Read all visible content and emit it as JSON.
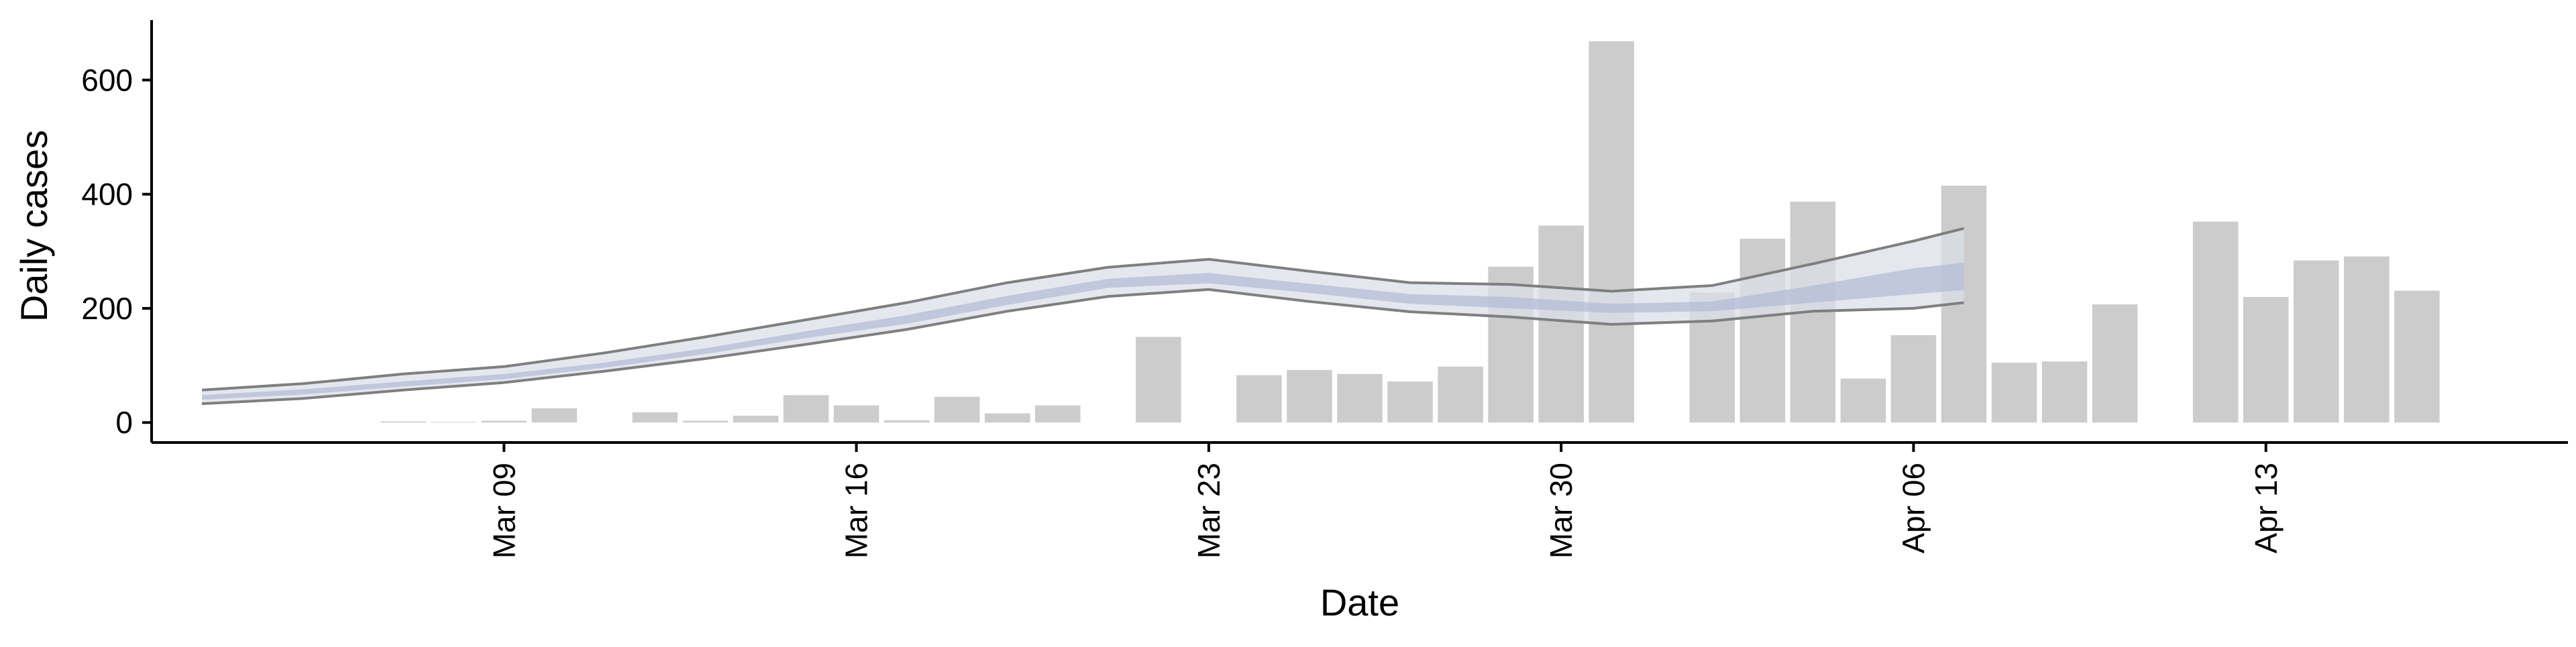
{
  "chart_data": {
    "type": "bar",
    "xlabel": "Date",
    "ylabel": "Daily cases",
    "ylim": [
      -35,
      705
    ],
    "y_ticks": [
      0,
      200,
      400,
      600
    ],
    "x_ticks": [
      {
        "date": "2020-03-09",
        "label": "Mar 09"
      },
      {
        "date": "2020-03-16",
        "label": "Mar 16"
      },
      {
        "date": "2020-03-23",
        "label": "Mar 23"
      },
      {
        "date": "2020-03-30",
        "label": "Mar 30"
      },
      {
        "date": "2020-04-06",
        "label": "Apr 06"
      },
      {
        "date": "2020-04-13",
        "label": "Apr 13"
      }
    ],
    "xlim": [
      "2020-03-02",
      "2020-04-19"
    ],
    "bar_color": "#cccccc",
    "bars": [
      {
        "date": "2020-03-07",
        "value": 2
      },
      {
        "date": "2020-03-08",
        "value": 1
      },
      {
        "date": "2020-03-09",
        "value": 3
      },
      {
        "date": "2020-03-10",
        "value": 25
      },
      {
        "date": "2020-03-12",
        "value": 18
      },
      {
        "date": "2020-03-13",
        "value": 3
      },
      {
        "date": "2020-03-14",
        "value": 12
      },
      {
        "date": "2020-03-15",
        "value": 48
      },
      {
        "date": "2020-03-16",
        "value": 30
      },
      {
        "date": "2020-03-17",
        "value": 4
      },
      {
        "date": "2020-03-18",
        "value": 45
      },
      {
        "date": "2020-03-19",
        "value": 16
      },
      {
        "date": "2020-03-20",
        "value": 30
      },
      {
        "date": "2020-03-22",
        "value": 150
      },
      {
        "date": "2020-03-24",
        "value": 83
      },
      {
        "date": "2020-03-25",
        "value": 92
      },
      {
        "date": "2020-03-26",
        "value": 85
      },
      {
        "date": "2020-03-27",
        "value": 72
      },
      {
        "date": "2020-03-28",
        "value": 98
      },
      {
        "date": "2020-03-29",
        "value": 273
      },
      {
        "date": "2020-03-30",
        "value": 345
      },
      {
        "date": "2020-03-31",
        "value": 668
      },
      {
        "date": "2020-04-02",
        "value": 228
      },
      {
        "date": "2020-04-03",
        "value": 322
      },
      {
        "date": "2020-04-04",
        "value": 387
      },
      {
        "date": "2020-04-05",
        "value": 77
      },
      {
        "date": "2020-04-06",
        "value": 153
      },
      {
        "date": "2020-04-07",
        "value": 415
      },
      {
        "date": "2020-04-08",
        "value": 105
      },
      {
        "date": "2020-04-09",
        "value": 107
      },
      {
        "date": "2020-04-10",
        "value": 207
      },
      {
        "date": "2020-04-12",
        "value": 352
      },
      {
        "date": "2020-04-13",
        "value": 220
      },
      {
        "date": "2020-04-14",
        "value": 284
      },
      {
        "date": "2020-04-15",
        "value": 291
      },
      {
        "date": "2020-04-16",
        "value": 231
      }
    ],
    "band": {
      "dates": [
        "2020-03-03",
        "2020-03-05",
        "2020-03-07",
        "2020-03-09",
        "2020-03-11",
        "2020-03-13",
        "2020-03-15",
        "2020-03-17",
        "2020-03-19",
        "2020-03-21",
        "2020-03-23",
        "2020-03-25",
        "2020-03-27",
        "2020-03-29",
        "2020-03-31",
        "2020-04-02",
        "2020-04-04",
        "2020-04-06",
        "2020-04-07"
      ],
      "upper": [
        57,
        68,
        85,
        98,
        122,
        150,
        180,
        210,
        245,
        272,
        286,
        265,
        245,
        242,
        230,
        240,
        278,
        318,
        340
      ],
      "lower": [
        33,
        42,
        57,
        70,
        90,
        112,
        137,
        163,
        195,
        221,
        233,
        212,
        194,
        185,
        172,
        178,
        195,
        200,
        210
      ],
      "inner_upper": [
        48,
        58,
        72,
        85,
        105,
        130,
        160,
        188,
        222,
        252,
        262,
        243,
        225,
        220,
        208,
        212,
        240,
        270,
        280
      ],
      "inner_lower": [
        40,
        49,
        63,
        76,
        96,
        120,
        148,
        173,
        206,
        236,
        244,
        227,
        208,
        200,
        192,
        195,
        210,
        225,
        232
      ],
      "outer_color": "#dcdfe8",
      "inner_color": "#b4bcd6",
      "line_color": "#7f7f7f"
    }
  }
}
